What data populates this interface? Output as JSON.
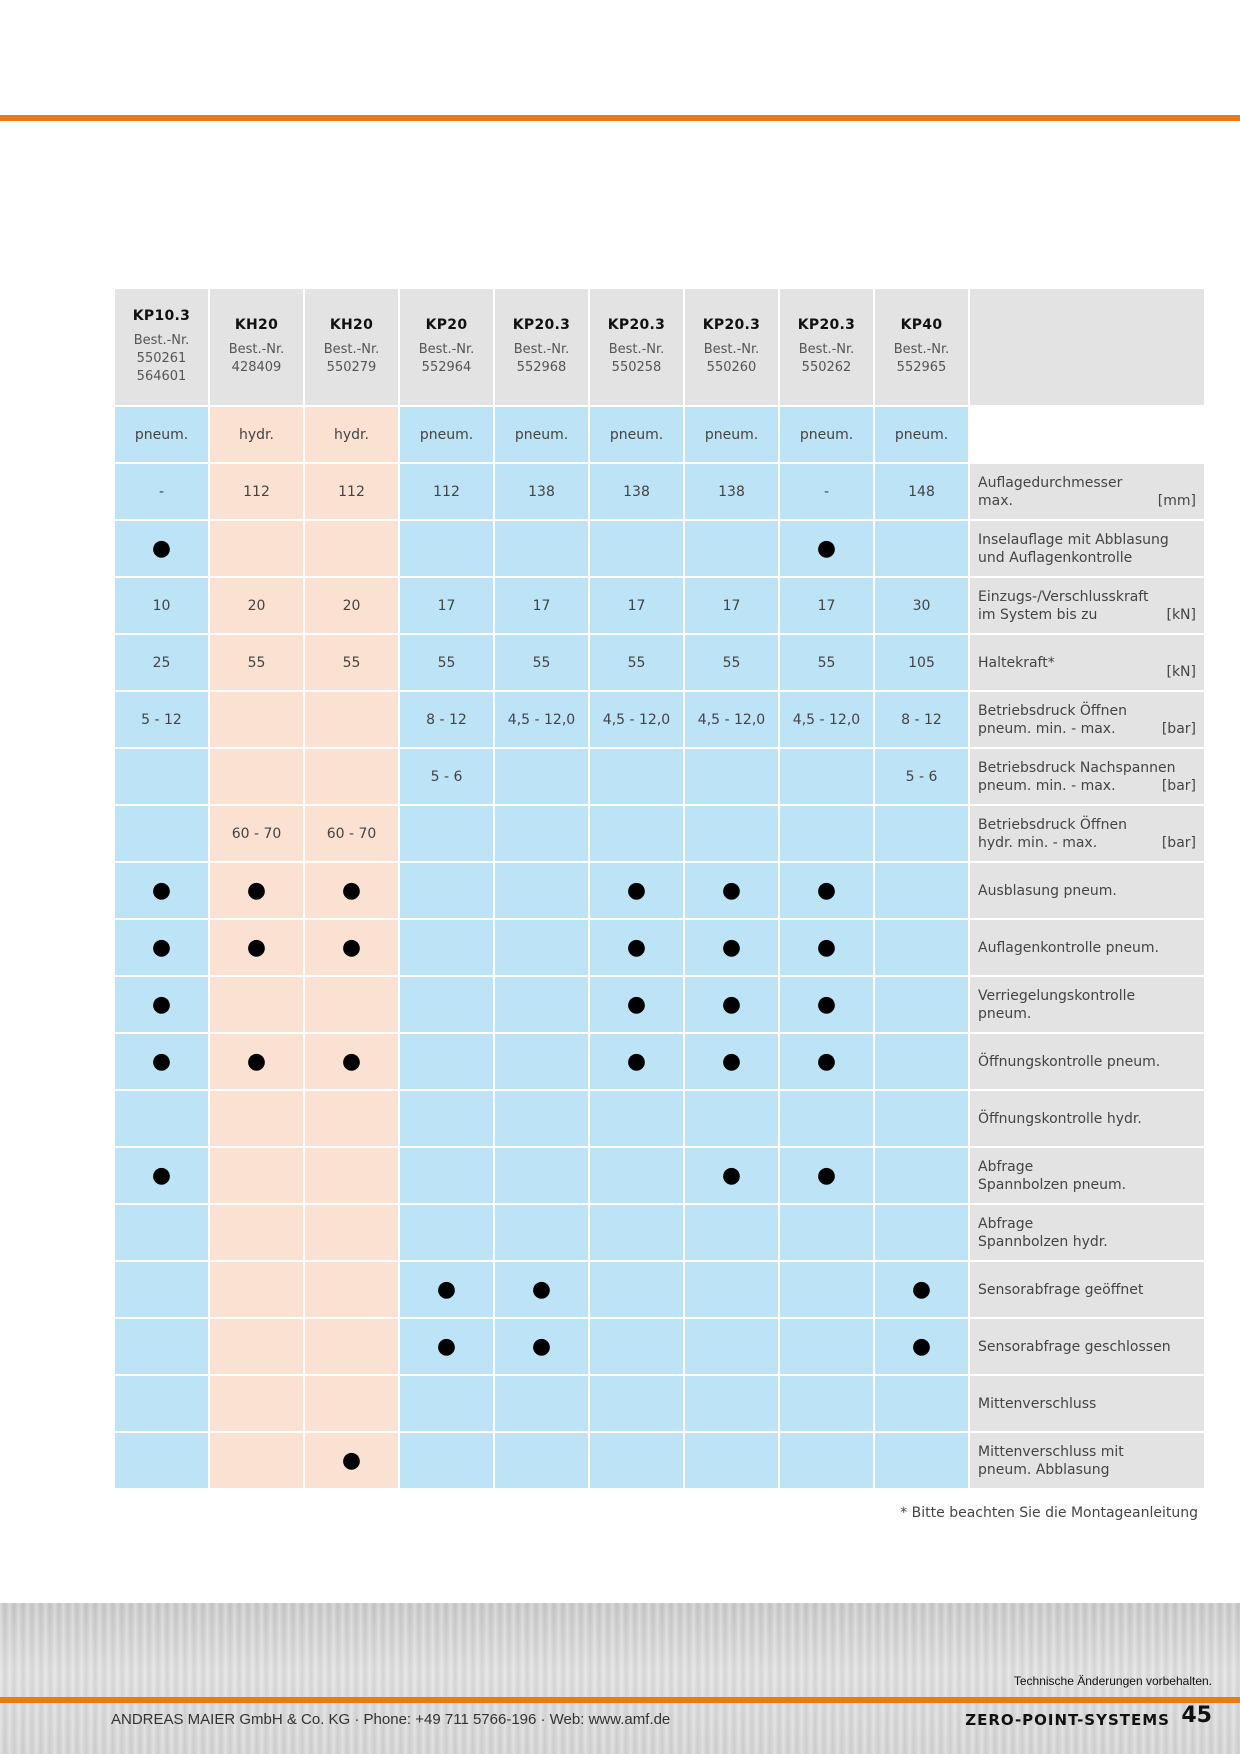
{
  "models": [
    {
      "name": "KP10.3",
      "best_label": "Best.-Nr.",
      "best_nr": [
        "550261",
        "564601"
      ],
      "type": "pneum."
    },
    {
      "name": "KH20",
      "best_label": "Best.-Nr.",
      "best_nr": [
        "428409"
      ],
      "type": "hydr."
    },
    {
      "name": "KH20",
      "best_label": "Best.-Nr.",
      "best_nr": [
        "550279"
      ],
      "type": "hydr."
    },
    {
      "name": "KP20",
      "best_label": "Best.-Nr.",
      "best_nr": [
        "552964"
      ],
      "type": "pneum."
    },
    {
      "name": "KP20.3",
      "best_label": "Best.-Nr.",
      "best_nr": [
        "552968"
      ],
      "type": "pneum."
    },
    {
      "name": "KP20.3",
      "best_label": "Best.-Nr.",
      "best_nr": [
        "550258"
      ],
      "type": "pneum."
    },
    {
      "name": "KP20.3",
      "best_label": "Best.-Nr.",
      "best_nr": [
        "550260"
      ],
      "type": "pneum."
    },
    {
      "name": "KP20.3",
      "best_label": "Best.-Nr.",
      "best_nr": [
        "550262"
      ],
      "type": "pneum."
    },
    {
      "name": "KP40",
      "best_label": "Best.-Nr.",
      "best_nr": [
        "552965"
      ],
      "type": "pneum."
    }
  ],
  "rows": [
    {
      "label_lines": [
        "Auflagedurchmesser",
        "max."
      ],
      "unit": "[mm]",
      "values": [
        "-",
        "112",
        "112",
        "112",
        "138",
        "138",
        "138",
        "-",
        "148"
      ]
    },
    {
      "label_lines": [
        "Inselauflage mit Abblasung",
        "und Auflagenkontrolle"
      ],
      "unit": "",
      "values": [
        "●",
        "",
        "",
        "",
        "",
        "",
        "",
        "●",
        ""
      ]
    },
    {
      "label_lines": [
        "Einzugs-/Verschlusskraft",
        "im System bis zu"
      ],
      "unit": "[kN]",
      "values": [
        "10",
        "20",
        "20",
        "17",
        "17",
        "17",
        "17",
        "17",
        "30"
      ]
    },
    {
      "label_lines": [
        "Haltekraft*"
      ],
      "unit": "[kN]",
      "values": [
        "25",
        "55",
        "55",
        "55",
        "55",
        "55",
        "55",
        "55",
        "105"
      ]
    },
    {
      "label_lines": [
        "Betriebsdruck Öffnen",
        "pneum. min. - max."
      ],
      "unit": "[bar]",
      "values": [
        "5 - 12",
        "",
        "",
        "8 - 12",
        "4,5 - 12,0",
        "4,5 - 12,0",
        "4,5 - 12,0",
        "4,5 - 12,0",
        "8 - 12"
      ]
    },
    {
      "label_lines": [
        "Betriebsdruck Nachspannen",
        "pneum. min. - max."
      ],
      "unit": "[bar]",
      "values": [
        "",
        "",
        "",
        "5 - 6",
        "",
        "",
        "",
        "",
        "5 - 6"
      ]
    },
    {
      "label_lines": [
        "Betriebsdruck Öffnen",
        "hydr. min. - max."
      ],
      "unit": "[bar]",
      "values": [
        "",
        "60 - 70",
        "60 - 70",
        "",
        "",
        "",
        "",
        "",
        ""
      ]
    },
    {
      "label_lines": [
        "Ausblasung pneum."
      ],
      "unit": "",
      "values": [
        "●",
        "●",
        "●",
        "",
        "",
        "●",
        "●",
        "●",
        ""
      ]
    },
    {
      "label_lines": [
        "Auflagenkontrolle pneum."
      ],
      "unit": "",
      "values": [
        "●",
        "●",
        "●",
        "",
        "",
        "●",
        "●",
        "●",
        ""
      ]
    },
    {
      "label_lines": [
        "Verriegelungskontrolle",
        "pneum."
      ],
      "unit": "",
      "values": [
        "●",
        "",
        "",
        "",
        "",
        "●",
        "●",
        "●",
        ""
      ]
    },
    {
      "label_lines": [
        "Öffnungskontrolle pneum."
      ],
      "unit": "",
      "values": [
        "●",
        "●",
        "●",
        "",
        "",
        "●",
        "●",
        "●",
        ""
      ]
    },
    {
      "label_lines": [
        "Öffnungskontrolle hydr."
      ],
      "unit": "",
      "values": [
        "",
        "",
        "",
        "",
        "",
        "",
        "",
        "",
        ""
      ]
    },
    {
      "label_lines": [
        "Abfrage",
        "Spannbolzen pneum."
      ],
      "unit": "",
      "values": [
        "●",
        "",
        "",
        "",
        "",
        "",
        "●",
        "●",
        ""
      ]
    },
    {
      "label_lines": [
        "Abfrage",
        "Spannbolzen hydr."
      ],
      "unit": "",
      "values": [
        "",
        "",
        "",
        "",
        "",
        "",
        "",
        "",
        ""
      ]
    },
    {
      "label_lines": [
        "Sensorabfrage geöffnet"
      ],
      "unit": "",
      "values": [
        "",
        "",
        "",
        "●",
        "●",
        "",
        "",
        "",
        "●"
      ]
    },
    {
      "label_lines": [
        "Sensorabfrage geschlossen"
      ],
      "unit": "",
      "values": [
        "",
        "",
        "",
        "●",
        "●",
        "",
        "",
        "",
        "●"
      ]
    },
    {
      "label_lines": [
        "Mittenverschluss"
      ],
      "unit": "",
      "values": [
        "",
        "",
        "",
        "",
        "",
        "",
        "",
        "",
        ""
      ]
    },
    {
      "label_lines": [
        "Mittenverschluss mit",
        "pneum. Abblasung"
      ],
      "unit": "",
      "values": [
        "",
        "",
        "●",
        "",
        "",
        "",
        "",
        "",
        ""
      ]
    }
  ],
  "footnote": "* Bitte beachten Sie die Montageanleitung",
  "footer": {
    "tech_note": "Technische Änderungen vorbehalten.",
    "company": "ANDREAS MAIER GmbH & Co. KG · Phone: +49 711 5766-196 · Web: www.amf.de",
    "brand": "ZERO-POINT-SYSTEMS",
    "page": "45"
  },
  "colors": {
    "accent": "#ec7a14",
    "pneum_fill": "#bde3f7",
    "hydr_fill": "#fbe1d2",
    "header_fill": "#e3e3e3"
  }
}
